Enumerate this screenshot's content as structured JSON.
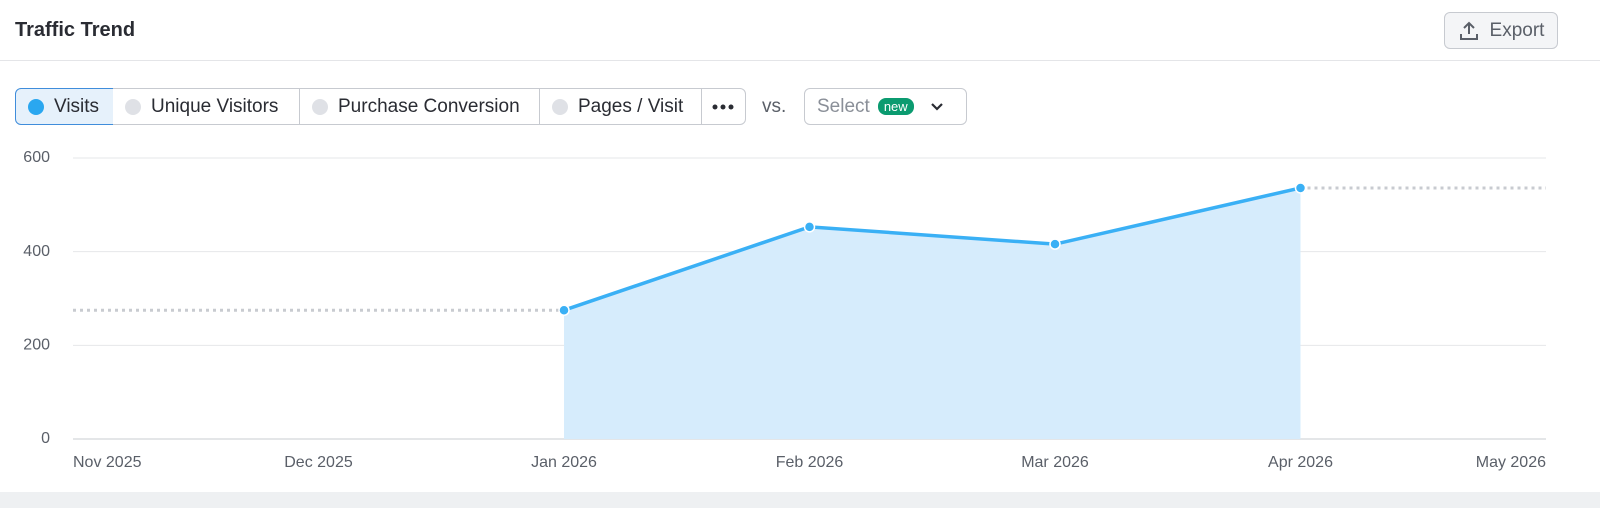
{
  "header": {
    "title": "Traffic Trend",
    "export": "Export"
  },
  "metrics": [
    "Visits",
    "Unique Visitors",
    "Purchase Conversion",
    "Pages / Visit"
  ],
  "vs": "vs.",
  "select": {
    "placeholder": "Select",
    "badge": "new"
  },
  "chart_data": {
    "type": "line",
    "categories": [
      "Nov 2025",
      "Dec 2025",
      "Jan 2026",
      "Feb 2026",
      "Mar 2026",
      "Apr 2026",
      "May 2026"
    ],
    "values": [
      null,
      null,
      275,
      453,
      416,
      536,
      null
    ],
    "color": "#3ab0f5",
    "fill": "#d6ecfc",
    "ylim": [
      0,
      600
    ],
    "yticks": [
      0,
      200,
      400,
      600
    ],
    "grid": true
  }
}
